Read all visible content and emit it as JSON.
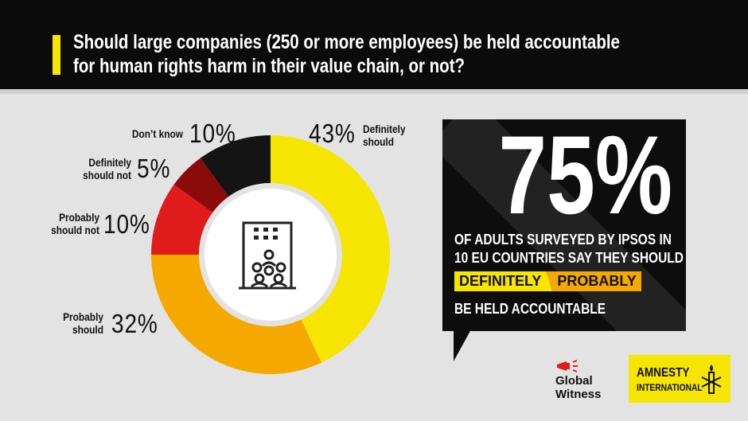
{
  "header": {
    "title_line1": "Should large companies (250 or more employees) be held accountable",
    "title_line2": "for human rights harm in their value chain, or not?"
  },
  "chart_data": {
    "type": "pie",
    "style": "donut",
    "categories": [
      "Definitely should",
      "Probably should",
      "Probably should not",
      "Definitely should not",
      "Don't know"
    ],
    "values": [
      43,
      32,
      10,
      5,
      10
    ],
    "colors": [
      "#f5e500",
      "#f5a800",
      "#e01b1b",
      "#8b0a0a",
      "#141414"
    ],
    "value_labels": [
      "43%",
      "32%",
      "10%",
      "5%",
      "10%"
    ],
    "center_icon": "office-building-people-icon"
  },
  "labels": {
    "dont_know": {
      "text": "Don’t know",
      "pct": "10%"
    },
    "def_not": {
      "line1": "Definitely",
      "line2": "should not",
      "pct": "5%"
    },
    "prob_not": {
      "line1": "Probably",
      "line2": "should not",
      "pct": "10%"
    },
    "prob_should": {
      "line1": "Probably",
      "line2": "should",
      "pct": "32%"
    },
    "def_should": {
      "line1": "Definitely",
      "line2": "should",
      "pct": "43%"
    }
  },
  "callout": {
    "big_number": "75%",
    "line1": "OF ADULTS SURVEYED BY IPSOS IN",
    "line2": "10 EU COUNTRIES SAY THEY SHOULD",
    "tag_definitely": "DEFINITELY",
    "tag_probably": "PROBABLY",
    "line3": "BE HELD ACCOUNTABLE"
  },
  "logos": {
    "global_witness_line1": "Global",
    "global_witness_line2": "Witness",
    "amnesty_line1": "AMNESTY",
    "amnesty_line2": "INTERNATIONAL"
  },
  "colors": {
    "header_bg": "#0b0b0b",
    "accent_yellow": "#f5e500",
    "accent_orange": "#f5a800",
    "background": "#e3e3e3"
  }
}
